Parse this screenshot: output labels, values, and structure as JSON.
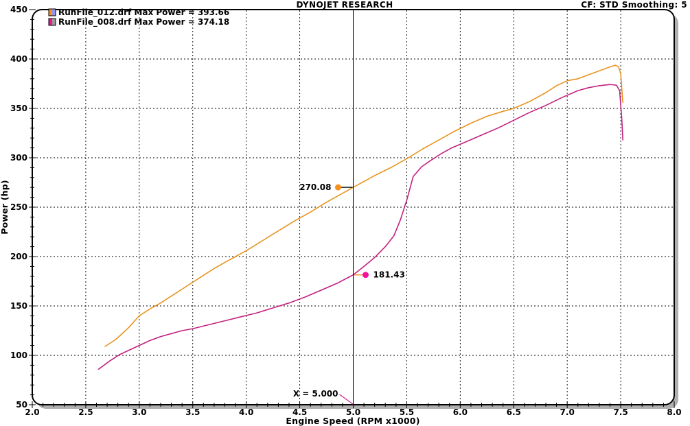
{
  "header": {
    "title": "DYNOJET RESEARCH",
    "right_text": "CF: STD  Smoothing: 5",
    "correction_factor": "STD",
    "smoothing": "5"
  },
  "chart_data": {
    "type": "line",
    "title": "DYNOJET RESEARCH",
    "xlabel": "Engine Speed (RPM x1000)",
    "ylabel": "Power (hp)",
    "xlim": [
      2.0,
      8.0
    ],
    "ylim": [
      50,
      450
    ],
    "x_major_step": 0.5,
    "x_minor_step": 0.1,
    "y_major_step": 50,
    "y_minor_step": 10,
    "x_ticks": [
      "2.0",
      "2.5",
      "3.0",
      "3.5",
      "4.0",
      "4.5",
      "5.0",
      "5.5",
      "6.0",
      "6.5",
      "7.0",
      "7.5",
      "8.0"
    ],
    "y_ticks": [
      "450",
      "400",
      "350",
      "300",
      "250",
      "200",
      "150",
      "100",
      "50"
    ],
    "grid": "dashed-major",
    "legend_position": "top-left",
    "frame_shadow_color": "#b0b0b0",
    "series": [
      {
        "name": "RunFile_012.drf",
        "legend_label": "RunFile_012.drf Max Power = 393.66",
        "max_power": 393.66,
        "color": "#E8941E",
        "swatch": [
          "#F7941D",
          "#9595EF"
        ],
        "points": [
          [
            2.68,
            109
          ],
          [
            2.78,
            116
          ],
          [
            2.9,
            128
          ],
          [
            3.0,
            140
          ],
          [
            3.1,
            147
          ],
          [
            3.2,
            153
          ],
          [
            3.3,
            160
          ],
          [
            3.4,
            167
          ],
          [
            3.5,
            174
          ],
          [
            3.6,
            181
          ],
          [
            3.7,
            188
          ],
          [
            3.8,
            194
          ],
          [
            3.9,
            200
          ],
          [
            4.0,
            206
          ],
          [
            4.15,
            216
          ],
          [
            4.3,
            226
          ],
          [
            4.45,
            236
          ],
          [
            4.6,
            245
          ],
          [
            4.75,
            255
          ],
          [
            4.9,
            264
          ],
          [
            5.0,
            270.08
          ],
          [
            5.1,
            276
          ],
          [
            5.2,
            282
          ],
          [
            5.35,
            290
          ],
          [
            5.5,
            299
          ],
          [
            5.65,
            309
          ],
          [
            5.8,
            318
          ],
          [
            5.95,
            327
          ],
          [
            6.1,
            335
          ],
          [
            6.25,
            342
          ],
          [
            6.4,
            347
          ],
          [
            6.5,
            350
          ],
          [
            6.65,
            357
          ],
          [
            6.8,
            366
          ],
          [
            6.9,
            373
          ],
          [
            7.0,
            378
          ],
          [
            7.1,
            380
          ],
          [
            7.2,
            384
          ],
          [
            7.3,
            388
          ],
          [
            7.4,
            392
          ],
          [
            7.45,
            393.66
          ],
          [
            7.48,
            392
          ],
          [
            7.5,
            385
          ],
          [
            7.52,
            356
          ]
        ]
      },
      {
        "name": "RunFile_008.drf",
        "legend_label": "RunFile_008.drf Max Power = 374.18",
        "max_power": 374.18,
        "color": "#C2217F",
        "swatch": [
          "#ED1690",
          "#999999"
        ],
        "points": [
          [
            2.62,
            86
          ],
          [
            2.72,
            94
          ],
          [
            2.82,
            101
          ],
          [
            2.92,
            106
          ],
          [
            3.0,
            110
          ],
          [
            3.1,
            115
          ],
          [
            3.2,
            119
          ],
          [
            3.3,
            122
          ],
          [
            3.4,
            125
          ],
          [
            3.5,
            127
          ],
          [
            3.65,
            131
          ],
          [
            3.8,
            135
          ],
          [
            3.95,
            139
          ],
          [
            4.1,
            143
          ],
          [
            4.25,
            148
          ],
          [
            4.4,
            153
          ],
          [
            4.55,
            159
          ],
          [
            4.7,
            166
          ],
          [
            4.85,
            173
          ],
          [
            5.0,
            181.43
          ],
          [
            5.1,
            190
          ],
          [
            5.2,
            199
          ],
          [
            5.3,
            210
          ],
          [
            5.38,
            221
          ],
          [
            5.44,
            237
          ],
          [
            5.5,
            257
          ],
          [
            5.56,
            281
          ],
          [
            5.64,
            291
          ],
          [
            5.72,
            297
          ],
          [
            5.82,
            304
          ],
          [
            5.92,
            310
          ],
          [
            6.05,
            316
          ],
          [
            6.2,
            323
          ],
          [
            6.35,
            330
          ],
          [
            6.5,
            338
          ],
          [
            6.65,
            346
          ],
          [
            6.8,
            353
          ],
          [
            6.95,
            361
          ],
          [
            7.1,
            368
          ],
          [
            7.2,
            371
          ],
          [
            7.3,
            373
          ],
          [
            7.4,
            374.18
          ],
          [
            7.46,
            373.5
          ],
          [
            7.49,
            368
          ],
          [
            7.51,
            340
          ],
          [
            7.52,
            318
          ]
        ]
      }
    ],
    "cursor": {
      "x": 5.0,
      "label": "X = 5.000",
      "leader_color": "#D02090",
      "readouts": [
        {
          "series": "RunFile_012.drf",
          "value": 270.08,
          "label": "270.08",
          "side": "left",
          "marker_color": "#F5921E",
          "leader_color": "#000000"
        },
        {
          "series": "RunFile_008.drf",
          "value": 181.43,
          "label": "181.43",
          "side": "right",
          "marker_color": "#F5129B",
          "leader_color": "#F08020"
        }
      ]
    }
  }
}
